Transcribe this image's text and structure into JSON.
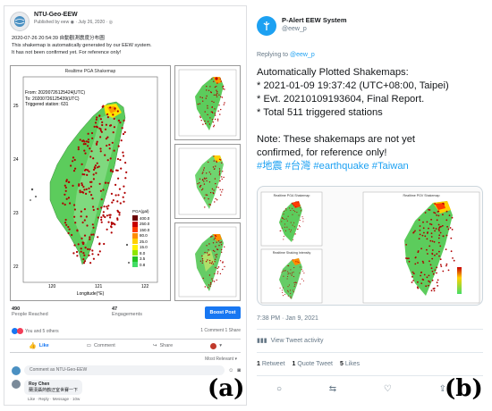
{
  "panel_a": {
    "page_name": "NTU-Geo-EEW",
    "meta": "Published by eew ◉ · July 26, 2020 · ◎",
    "post_line1": "2020-07-26 20:54:39 自動觀測震度分布圖",
    "post_line2": "This shakemap is automatically generated by our EEW system.",
    "post_line3": "It has not been confirmed yet. For reference only!",
    "map_title": "Realtime PGA Shakemap",
    "from_label": "From:  20200726125424(UTC)",
    "to_label": "To:     20200726125439(UTC)",
    "triggered": "Triggered station:  631",
    "legend_title": "PGA(gal)",
    "legend_items": [
      "400.0",
      "250.0",
      "150.0",
      "80.0",
      "25.0",
      "15.0",
      "8.0",
      "3.5",
      "0.8"
    ],
    "legend_colors": [
      "#6b0000",
      "#c80000",
      "#ff3c00",
      "#ff8c00",
      "#ffd000",
      "#fff200",
      "#8ee600",
      "#22c322",
      "#44dd66"
    ],
    "xticks": [
      "120",
      "121",
      "122"
    ],
    "yticks": [
      "25",
      "24",
      "23",
      "22"
    ],
    "xlabel": "Longitude(°E)",
    "reached_count": "490",
    "reached_label": "People Reached",
    "engagement_count": "47",
    "engagement_label": "Engagements",
    "boost_label": "Boost Post",
    "reactions": "You and 5 others",
    "comments_shares": "1 Comment  1 Share",
    "like_label": "Like",
    "comment_label": "Comment",
    "share_label": "Share",
    "most_relevant": "Most Relevant ▾",
    "comment_placeholder": "Comment as NTU-Geo-EEW",
    "commenter": "Roy Chen",
    "comment_text": "蘭漢攝熱鶴迂室世賽一下",
    "comment_actions": "Like · Reply · Message · 10w",
    "label": "(a)"
  },
  "panel_b": {
    "name": "P-Alert EEW System",
    "handle": "@eew_p",
    "replying_prefix": "Replying to",
    "replying_handle": "@eew_p",
    "tweet_lines": [
      "Automatically Plotted Shakemaps:",
      "* 2021-01-09 19:37:42 (UTC+08:00, Taipei)",
      "* Evt. 20210109193604, Final Report.",
      "* Total 511 triggered stations",
      "",
      "Note: These shakemaps are not yet",
      "confirmed, for reference only!"
    ],
    "hashtags": "#地震 #台灣 #earthquake #Taiwan",
    "map_titles": [
      "Realtime PGA Shakemap",
      "Realtime PGV Shakemap",
      "Realtime Shaking Intensity"
    ],
    "time": "7:38 PM · Jan 9, 2021",
    "activity": "View Tweet activity",
    "retweets_count": "1",
    "retweets_label": "Retweet",
    "quotes_count": "1",
    "quotes_label": "Quote Tweet",
    "likes_count": "5",
    "likes_label": "Likes",
    "label": "(b)"
  }
}
